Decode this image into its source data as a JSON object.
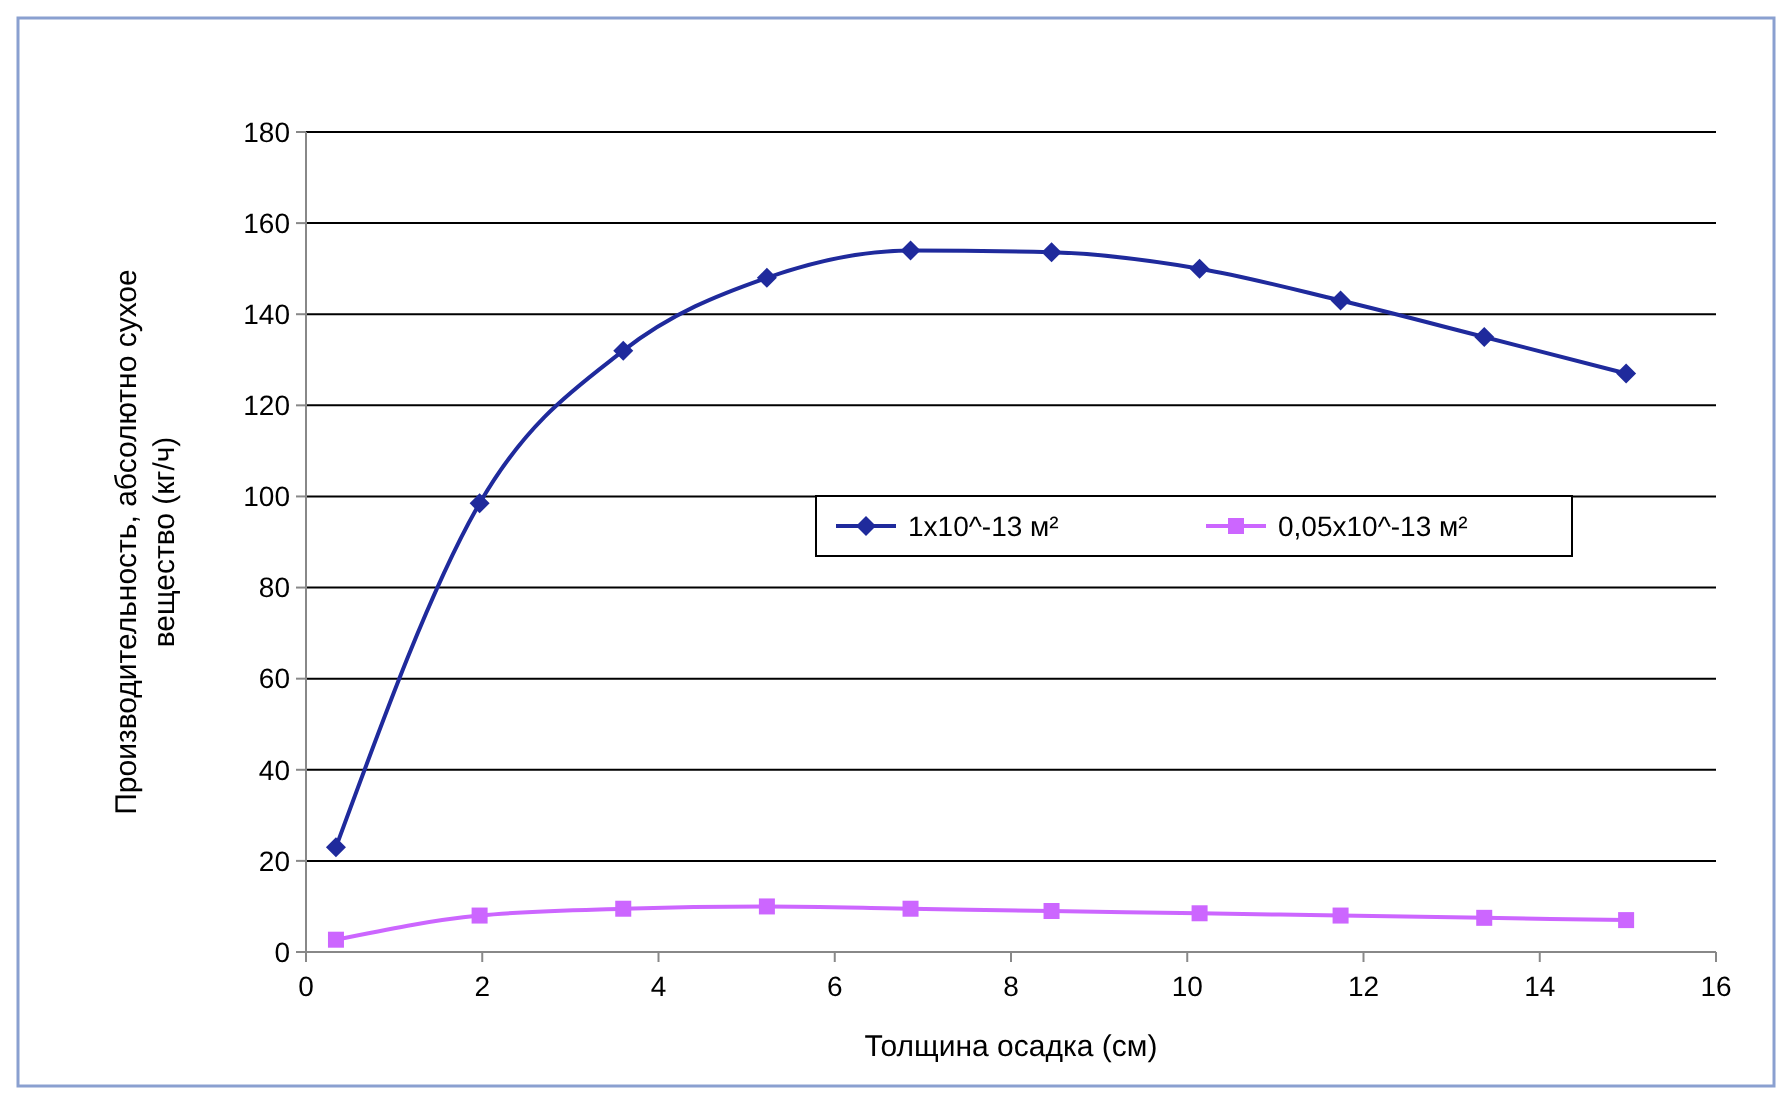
{
  "chart_data": {
    "type": "line",
    "xlabel": "Толщина осадка (см)",
    "ylabel": "Производительность, абсолютно сухое вещество (кг/ч)",
    "x": [
      0.34,
      1.97,
      3.6,
      5.23,
      6.86,
      8.46,
      10.14,
      11.74,
      13.37,
      14.98
    ],
    "series": [
      {
        "name": "1x10^-13 м²",
        "color": "#1f2a9c",
        "marker": "diamond",
        "values": [
          23,
          98.5,
          132,
          148,
          154,
          153.6,
          150,
          143,
          135,
          127
        ]
      },
      {
        "name": "0,05x10^-13 м²",
        "color": "#cc66ff",
        "marker": "square",
        "values": [
          2.7,
          8,
          9.5,
          10,
          9.5,
          9,
          8.5,
          8,
          7.5,
          7
        ]
      }
    ],
    "xlim": [
      0,
      16
    ],
    "xticks": [
      0,
      2,
      4,
      6,
      8,
      10,
      12,
      14,
      16
    ],
    "ylim": [
      0,
      180
    ],
    "yticks": [
      0,
      20,
      40,
      60,
      80,
      100,
      120,
      140,
      160,
      180
    ],
    "grid": "y",
    "legend": "right",
    "line_style": "solid"
  }
}
